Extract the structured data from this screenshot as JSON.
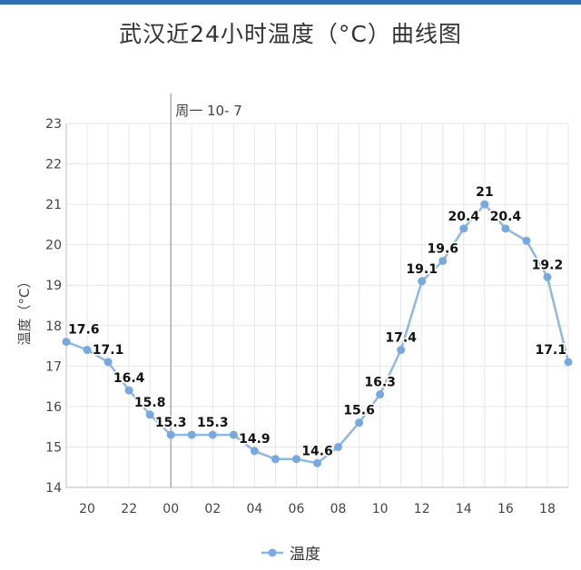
{
  "title": "武汉近24小时温度（°C）曲线图",
  "date_marker": "周一 10- 7",
  "colors": {
    "line": "#8db8e6",
    "point": "#77a9df",
    "grid": "#e6e6e6",
    "axis": "#c8c8c8",
    "text": "#444444",
    "label": "#111111",
    "header_bar": "#2f6db5"
  },
  "chart_data": {
    "type": "line",
    "title": "武汉近24小时温度（°C）曲线图",
    "xlabel": "",
    "ylabel": "温度（°C）",
    "ylim": [
      14,
      23
    ],
    "yticks": [
      14,
      15,
      16,
      17,
      18,
      19,
      20,
      21,
      22,
      23
    ],
    "xticks": [
      "20",
      "22",
      "00",
      "02",
      "04",
      "06",
      "08",
      "10",
      "12",
      "14",
      "16",
      "18"
    ],
    "categories": [
      "19",
      "20",
      "21",
      "22",
      "23",
      "00",
      "01",
      "02",
      "03",
      "04",
      "05",
      "06",
      "07",
      "08",
      "09",
      "10",
      "11",
      "12",
      "13",
      "14",
      "15",
      "16",
      "17",
      "18",
      "19"
    ],
    "grid": true,
    "legend": "bottom-center",
    "series": [
      {
        "name": "温度",
        "values": [
          17.6,
          17.4,
          17.1,
          16.4,
          15.8,
          15.3,
          15.3,
          15.3,
          15.3,
          14.9,
          14.7,
          14.7,
          14.6,
          15.0,
          15.6,
          16.3,
          17.4,
          19.1,
          19.6,
          20.4,
          21.0,
          20.4,
          20.1,
          19.2,
          17.1
        ],
        "labels": [
          "17.6",
          "",
          "17.1",
          "16.4",
          "15.8",
          "15.3",
          "",
          "15.3",
          "",
          "14.9",
          "",
          "",
          "14.6",
          "",
          "15.6",
          "16.3",
          "17.4",
          "19.1",
          "19.6",
          "20.4",
          "21",
          "20.4",
          "",
          "19.2",
          "17.1"
        ]
      }
    ]
  },
  "legend": {
    "label": "温度"
  }
}
